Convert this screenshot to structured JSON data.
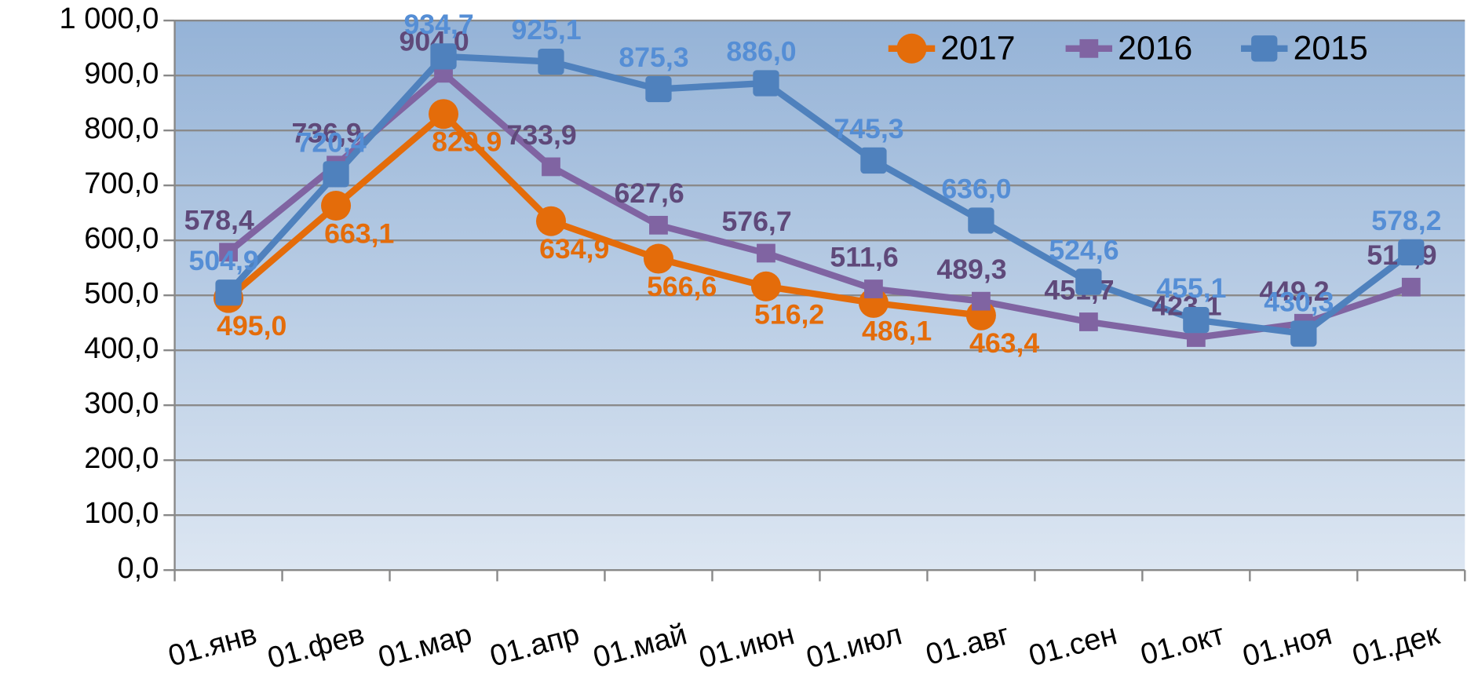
{
  "chart_data": {
    "type": "line",
    "categories": [
      "01.янв",
      "01.фев",
      "01.мар",
      "01.апр",
      "01.май",
      "01.июн",
      "01.июл",
      "01.авг",
      "01.сен",
      "01.окт",
      "01.ноя",
      "01.дек"
    ],
    "series": [
      {
        "name": "2017",
        "color": "#e46c0a",
        "label_color": "#e46c0a",
        "marker": "circle",
        "values": [
          495.0,
          663.1,
          829.9,
          634.9,
          566.6,
          516.2,
          486.1,
          463.4,
          null,
          null,
          null,
          null
        ],
        "value_labels": [
          "495,0",
          "663,1",
          "829,9",
          "634,9",
          "566,6",
          "516,2",
          "486,1",
          "463,4",
          null,
          null,
          null,
          null
        ]
      },
      {
        "name": "2016",
        "color": "#8064a2",
        "label_color": "#5f497a",
        "marker": "square",
        "values": [
          578.4,
          736.9,
          904.0,
          733.9,
          627.6,
          576.7,
          511.6,
          489.3,
          451.7,
          423.1,
          449.2,
          514.9
        ],
        "value_labels": [
          "578,4",
          "736,9",
          "904,0",
          "733,9",
          "627,6",
          "576,7",
          "511,6",
          "489,3",
          "451,7",
          "423,1",
          "449,2",
          "514,9"
        ]
      },
      {
        "name": "2015",
        "color": "#4f81bd",
        "label_color": "#558ed5",
        "marker": "bigsquare",
        "values": [
          504.9,
          720.4,
          934.7,
          925.1,
          875.3,
          886.0,
          745.3,
          636.0,
          524.6,
          455.1,
          430.3,
          578.2
        ],
        "value_labels": [
          "504,9",
          "720,4",
          "934,7",
          "925,1",
          "875,3",
          "886,0",
          "745,3",
          "636,0",
          "524,6",
          "455,1",
          "430,3",
          "578,2"
        ]
      }
    ],
    "ylim": [
      0,
      1000
    ],
    "yticks": [
      {
        "value": 0,
        "label": "0,0"
      },
      {
        "value": 100,
        "label": "100,0"
      },
      {
        "value": 200,
        "label": "200,0"
      },
      {
        "value": 300,
        "label": "300,0"
      },
      {
        "value": 400,
        "label": "400,0"
      },
      {
        "value": 500,
        "label": "500,0"
      },
      {
        "value": 600,
        "label": "600,0"
      },
      {
        "value": 700,
        "label": "700,0"
      },
      {
        "value": 800,
        "label": "800,0"
      },
      {
        "value": 900,
        "label": "900,0"
      },
      {
        "value": 1000,
        "label": "1 000,0"
      }
    ],
    "grid": true,
    "legend": "top-right"
  }
}
